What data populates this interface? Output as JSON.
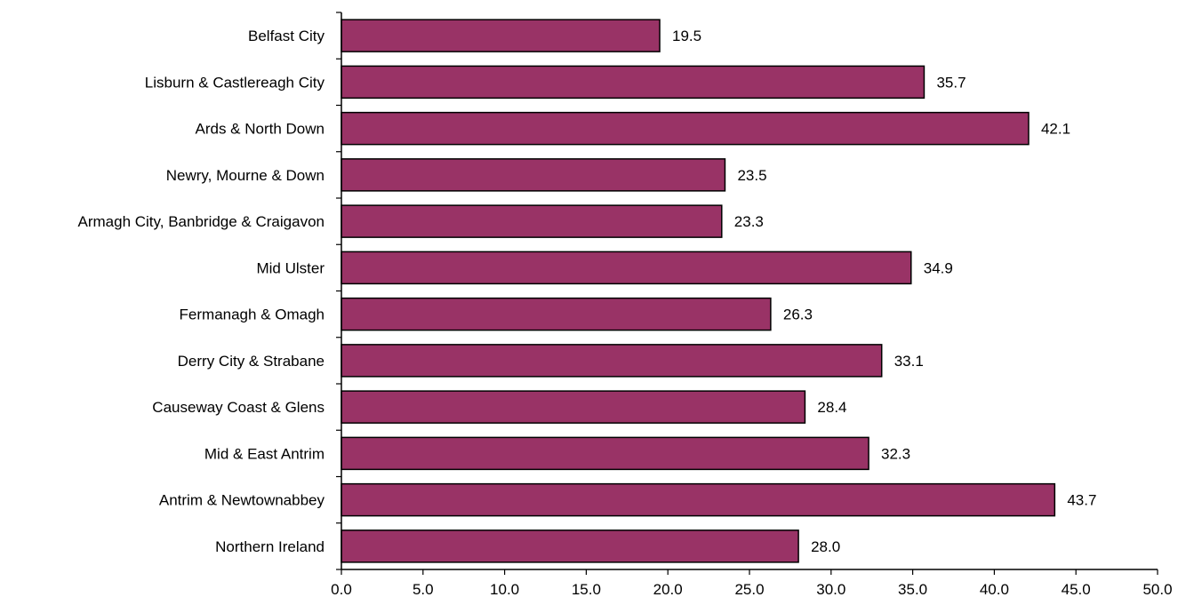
{
  "chart_data": {
    "type": "bar",
    "orientation": "horizontal",
    "categories": [
      "Belfast City",
      "Lisburn & Castlereagh City",
      "Ards & North Down",
      "Newry, Mourne & Down",
      "Armagh City, Banbridge & Craigavon",
      "Mid Ulster",
      "Fermanagh & Omagh",
      "Derry City & Strabane",
      "Causeway Coast & Glens",
      "Mid & East Antrim",
      "Antrim & Newtownabbey",
      "Northern Ireland"
    ],
    "values": [
      19.5,
      35.7,
      42.1,
      23.5,
      23.3,
      34.9,
      26.3,
      33.1,
      28.4,
      32.3,
      43.7,
      28.0
    ],
    "data_labels": [
      "19.5",
      "35.7",
      "42.1",
      "23.5",
      "23.3",
      "34.9",
      "26.3",
      "33.1",
      "28.4",
      "32.3",
      "43.7",
      "28.0"
    ],
    "xlim": [
      0,
      50
    ],
    "xticks": [
      "0.0",
      "5.0",
      "10.0",
      "15.0",
      "20.0",
      "25.0",
      "30.0",
      "35.0",
      "40.0",
      "45.0",
      "50.0"
    ],
    "bar_color": "#993366",
    "grid": false,
    "title": "",
    "xlabel": "",
    "ylabel": ""
  }
}
